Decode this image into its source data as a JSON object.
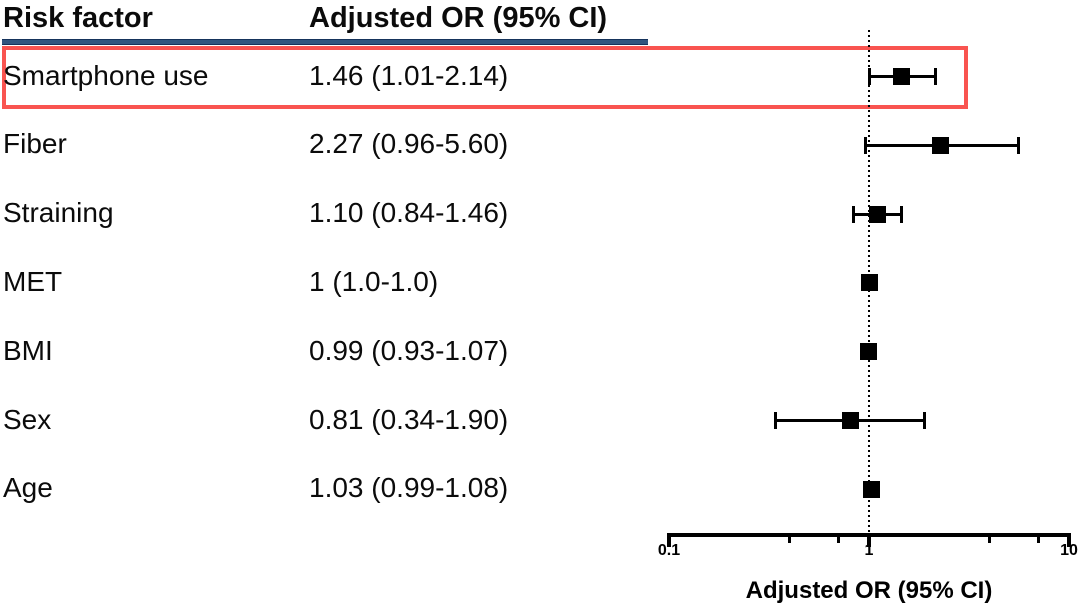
{
  "header": {
    "risk_factor_label": "Risk factor",
    "adjusted_or_label": "Adjusted OR (95% CI)"
  },
  "colors": {
    "highlight_box": "#f95450",
    "header_rule": "#2a4d77",
    "marker": "#000000",
    "text": "#0b0b0b"
  },
  "chart_data": {
    "type": "forest",
    "x_scale": "log",
    "xlim": [
      0.1,
      10
    ],
    "x_major_ticks": [
      0.1,
      1,
      10
    ],
    "x_major_tick_labels": [
      "0.1",
      "1",
      "10"
    ],
    "x_minor_ticks": [
      0.4,
      0.7,
      4,
      7
    ],
    "reference_line_x": 1,
    "xlabel": "Adjusted OR (95% CI)",
    "legend_position": "none",
    "grid": false,
    "rows": [
      {
        "label": "Smartphone use",
        "or_text": "1.46 (1.01-2.14)",
        "or": 1.46,
        "ci_low": 1.01,
        "ci_high": 2.14,
        "highlighted": true
      },
      {
        "label": "Fiber",
        "or_text": "2.27 (0.96-5.60)",
        "or": 2.27,
        "ci_low": 0.96,
        "ci_high": 5.6,
        "highlighted": false
      },
      {
        "label": "Straining",
        "or_text": "1.10 (0.84-1.46)",
        "or": 1.1,
        "ci_low": 0.84,
        "ci_high": 1.46,
        "highlighted": false
      },
      {
        "label": "MET",
        "or_text": "1 (1.0-1.0)",
        "or": 1.0,
        "ci_low": 1.0,
        "ci_high": 1.0,
        "highlighted": false
      },
      {
        "label": "BMI",
        "or_text": "0.99 (0.93-1.07)",
        "or": 0.99,
        "ci_low": 0.93,
        "ci_high": 1.07,
        "highlighted": false
      },
      {
        "label": "Sex",
        "or_text": "0.81 (0.34-1.90)",
        "or": 0.81,
        "ci_low": 0.34,
        "ci_high": 1.9,
        "highlighted": false
      },
      {
        "label": "Age",
        "or_text": "1.03 (0.99-1.08)",
        "or": 1.03,
        "ci_low": 0.99,
        "ci_high": 1.08,
        "highlighted": false
      }
    ]
  }
}
